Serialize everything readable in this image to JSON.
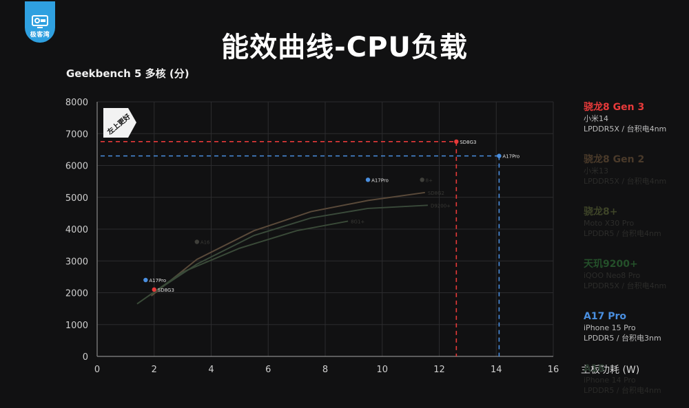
{
  "header": {
    "logo_text": "极客湾",
    "title": "能效曲线-CPU负载"
  },
  "chart_data": {
    "type": "scatter",
    "title": "能效曲线-CPU负载",
    "ylabel": "Geekbench 5 多核 (分)",
    "xlabel": "主板功耗 (W)",
    "xlim": [
      0,
      16
    ],
    "ylim": [
      0,
      8000
    ],
    "xticks": [
      "0",
      "2",
      "4",
      "6",
      "8",
      "10",
      "12",
      "14",
      "16"
    ],
    "yticks": [
      "0",
      "1000",
      "2000",
      "3000",
      "4000",
      "5000",
      "6000",
      "7000",
      "8000"
    ],
    "grid": true,
    "badge": "左上更好",
    "colors": {
      "sd8g3": "#e83a3a",
      "a17pro": "#4a8fe0",
      "dim": "#5a5a52"
    },
    "points": [
      {
        "label": "SD8G3",
        "x": 12.6,
        "y": 6750,
        "color": "#e83a3a"
      },
      {
        "label": "A17Pro",
        "x": 14.1,
        "y": 6300,
        "color": "#4a8fe0"
      },
      {
        "label": "A17Pro",
        "x": 9.5,
        "y": 5550,
        "color": "#4a8fe0"
      },
      {
        "label": "A17Pro",
        "x": 1.7,
        "y": 2400,
        "color": "#4a8fe0"
      },
      {
        "label": "SD8G3",
        "x": 2.0,
        "y": 2100,
        "color": "#e83a3a"
      },
      {
        "label": "A16",
        "x": 3.5,
        "y": 3600,
        "color": "#3f3f3a"
      },
      {
        "label": "8+",
        "x": 11.4,
        "y": 5550,
        "color": "#3f3f3a"
      }
    ],
    "dim_curves": [
      {
        "label": "SD8G2",
        "x": [
          1.9,
          3.5,
          5.5,
          7.5,
          9.5,
          11.5
        ],
        "y": [
          1900,
          3050,
          3950,
          4550,
          4900,
          5150
        ],
        "color": "#5a4a3a"
      },
      {
        "label": "D9200+",
        "x": [
          1.8,
          3.5,
          5.5,
          7.5,
          9.5,
          11.6
        ],
        "y": [
          1900,
          2900,
          3800,
          4350,
          4650,
          4750
        ],
        "color": "#3a4a3a"
      },
      {
        "label": "8G1+",
        "x": [
          1.4,
          3.0,
          5.0,
          7.0,
          8.8
        ],
        "y": [
          1650,
          2650,
          3400,
          3950,
          4250
        ],
        "color": "#3a4a38"
      }
    ],
    "guides": [
      {
        "x": 12.6,
        "y": 6750,
        "color": "#e83a3a"
      },
      {
        "x": 14.1,
        "y": 6300,
        "color": "#4a8fe0"
      }
    ]
  },
  "legend": [
    {
      "name": "骁龙8 Gen 3",
      "sub1": "小米14",
      "sub2": "LPDDR5X / 台积电4nm",
      "name_color": "#e83a3a",
      "sub_color": "#bdbdbd"
    },
    {
      "name": "骁龙8 Gen 2",
      "sub1": "小米13",
      "sub2": "LPDDR5X / 台积电4nm",
      "name_color": "#4a3a2a",
      "sub_color": "#2c2c2a"
    },
    {
      "name": "骁龙8+",
      "sub1": "Moto X30 Pro",
      "sub2": "LPDDR5 / 台积电4nm",
      "name_color": "#3e4428",
      "sub_color": "#2c2c2a"
    },
    {
      "name": "天玑9200+",
      "sub1": "iQOO Neo8 Pro",
      "sub2": "LPDDR5X / 台积电4nm",
      "name_color": "#24502a",
      "sub_color": "#2c2c2a"
    },
    {
      "name": "A17 Pro",
      "sub1": "iPhone 15 Pro",
      "sub2": "LPDDR5 / 台积电3nm",
      "name_color": "#4a8fe0",
      "sub_color": "#bdbdbd"
    },
    {
      "name": "A16",
      "sub1": "iPhone 14 Pro",
      "sub2": "LPDDR5 / 台积电4nm",
      "name_color": "#2a3a2e",
      "sub_color": "#2a2a28"
    }
  ]
}
